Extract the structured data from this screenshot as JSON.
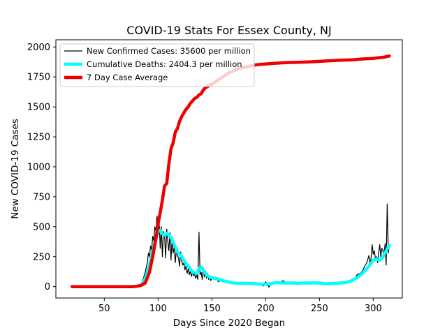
{
  "chart_data": {
    "type": "line",
    "title": "COVID-19 Stats For Essex County, NJ",
    "xlabel": "Days Since 2020 Began",
    "ylabel": "New COVID-19 Cases",
    "xlim": [
      5,
      327
    ],
    "ylim": [
      -95,
      2060
    ],
    "xticks": [
      50,
      100,
      150,
      200,
      250,
      300
    ],
    "yticks": [
      0,
      250,
      500,
      750,
      1000,
      1250,
      1500,
      1750,
      2000
    ],
    "grid": false,
    "legend_position": "top-left",
    "series": [
      {
        "name": "New Confirmed Cases: 35600 per million",
        "color": "#000000",
        "linewidth": 1.2,
        "points": [
          [
            20,
            0
          ],
          [
            30,
            0
          ],
          [
            40,
            0
          ],
          [
            50,
            0
          ],
          [
            60,
            0
          ],
          [
            70,
            0
          ],
          [
            75,
            0
          ],
          [
            80,
            2
          ],
          [
            82,
            5
          ],
          [
            84,
            15
          ],
          [
            86,
            60
          ],
          [
            88,
            120
          ],
          [
            90,
            200
          ],
          [
            91,
            280
          ],
          [
            92,
            250
          ],
          [
            93,
            340
          ],
          [
            94,
            300
          ],
          [
            95,
            420
          ],
          [
            96,
            380
          ],
          [
            97,
            500
          ],
          [
            98,
            460
          ],
          [
            99,
            590
          ],
          [
            100,
            420
          ],
          [
            101,
            540
          ],
          [
            102,
            320
          ],
          [
            103,
            500
          ],
          [
            104,
            250
          ],
          [
            105,
            460
          ],
          [
            106,
            430
          ],
          [
            107,
            240
          ],
          [
            108,
            480
          ],
          [
            109,
            380
          ],
          [
            110,
            300
          ],
          [
            111,
            450
          ],
          [
            112,
            220
          ],
          [
            113,
            400
          ],
          [
            114,
            280
          ],
          [
            115,
            330
          ],
          [
            116,
            200
          ],
          [
            117,
            310
          ],
          [
            118,
            260
          ],
          [
            119,
            240
          ],
          [
            120,
            170
          ],
          [
            121,
            290
          ],
          [
            122,
            210
          ],
          [
            123,
            180
          ],
          [
            124,
            200
          ],
          [
            125,
            140
          ],
          [
            126,
            175
          ],
          [
            127,
            110
          ],
          [
            128,
            150
          ],
          [
            129,
            100
          ],
          [
            130,
            130
          ],
          [
            131,
            85
          ],
          [
            132,
            120
          ],
          [
            133,
            90
          ],
          [
            134,
            105
          ],
          [
            135,
            70
          ],
          [
            136,
            95
          ],
          [
            137,
            60
          ],
          [
            138,
            455
          ],
          [
            139,
            100
          ],
          [
            140,
            120
          ],
          [
            141,
            60
          ],
          [
            142,
            160
          ],
          [
            143,
            80
          ],
          [
            144,
            130
          ],
          [
            145,
            70
          ],
          [
            146,
            110
          ],
          [
            147,
            60
          ],
          [
            148,
            90
          ],
          [
            149,
            50
          ],
          [
            150,
            75
          ],
          [
            152,
            60
          ],
          [
            154,
            80
          ],
          [
            156,
            40
          ],
          [
            158,
            55
          ],
          [
            160,
            40
          ],
          [
            162,
            50
          ],
          [
            165,
            30
          ],
          [
            168,
            40
          ],
          [
            170,
            25
          ],
          [
            172,
            35
          ],
          [
            175,
            20
          ],
          [
            178,
            30
          ],
          [
            180,
            25
          ],
          [
            185,
            20
          ],
          [
            190,
            30
          ],
          [
            195,
            15
          ],
          [
            198,
            5
          ],
          [
            200,
            40
          ],
          [
            203,
            -5
          ],
          [
            205,
            25
          ],
          [
            208,
            40
          ],
          [
            210,
            30
          ],
          [
            213,
            25
          ],
          [
            216,
            50
          ],
          [
            220,
            30
          ],
          [
            225,
            25
          ],
          [
            230,
            35
          ],
          [
            235,
            30
          ],
          [
            240,
            35
          ],
          [
            245,
            30
          ],
          [
            250,
            25
          ],
          [
            255,
            30
          ],
          [
            260,
            25
          ],
          [
            265,
            35
          ],
          [
            270,
            30
          ],
          [
            275,
            45
          ],
          [
            278,
            40
          ],
          [
            280,
            60
          ],
          [
            283,
            70
          ],
          [
            285,
            100
          ],
          [
            288,
            110
          ],
          [
            290,
            130
          ],
          [
            292,
            170
          ],
          [
            294,
            200
          ],
          [
            296,
            260
          ],
          [
            297,
            180
          ],
          [
            298,
            240
          ],
          [
            299,
            350
          ],
          [
            300,
            270
          ],
          [
            301,
            300
          ],
          [
            302,
            230
          ],
          [
            303,
            250
          ],
          [
            304,
            200
          ],
          [
            305,
            280
          ],
          [
            306,
            350
          ],
          [
            307,
            250
          ],
          [
            308,
            320
          ],
          [
            309,
            300
          ],
          [
            310,
            270
          ],
          [
            311,
            360
          ],
          [
            312,
            180
          ],
          [
            313,
            690
          ],
          [
            314,
            280
          ],
          [
            315,
            350
          ]
        ]
      },
      {
        "name": "Cumulative Deaths: 2404.3 per million",
        "color": "#00ffff",
        "linewidth": 4.5,
        "points": [
          [
            84,
            10
          ],
          [
            86,
            30
          ],
          [
            88,
            70
          ],
          [
            90,
            120
          ],
          [
            92,
            180
          ],
          [
            94,
            260
          ],
          [
            96,
            330
          ],
          [
            98,
            400
          ],
          [
            100,
            460
          ],
          [
            102,
            470
          ],
          [
            104,
            440
          ],
          [
            106,
            430
          ],
          [
            108,
            445
          ],
          [
            110,
            430
          ],
          [
            112,
            410
          ],
          [
            114,
            370
          ],
          [
            116,
            330
          ],
          [
            118,
            290
          ],
          [
            120,
            270
          ],
          [
            122,
            250
          ],
          [
            124,
            220
          ],
          [
            126,
            190
          ],
          [
            128,
            170
          ],
          [
            130,
            150
          ],
          [
            132,
            120
          ],
          [
            134,
            115
          ],
          [
            136,
            110
          ],
          [
            138,
            150
          ],
          [
            140,
            160
          ],
          [
            142,
            140
          ],
          [
            144,
            110
          ],
          [
            146,
            90
          ],
          [
            148,
            80
          ],
          [
            150,
            75
          ],
          [
            155,
            65
          ],
          [
            160,
            50
          ],
          [
            165,
            40
          ],
          [
            170,
            30
          ],
          [
            175,
            28
          ],
          [
            180,
            28
          ],
          [
            185,
            27
          ],
          [
            190,
            25
          ],
          [
            195,
            20
          ],
          [
            200,
            20
          ],
          [
            205,
            25
          ],
          [
            210,
            35
          ],
          [
            215,
            30
          ],
          [
            220,
            30
          ],
          [
            225,
            30
          ],
          [
            230,
            28
          ],
          [
            235,
            30
          ],
          [
            240,
            30
          ],
          [
            245,
            32
          ],
          [
            250,
            30
          ],
          [
            255,
            25
          ],
          [
            260,
            25
          ],
          [
            265,
            28
          ],
          [
            270,
            30
          ],
          [
            275,
            35
          ],
          [
            280,
            50
          ],
          [
            285,
            75
          ],
          [
            290,
            110
          ],
          [
            295,
            160
          ],
          [
            300,
            220
          ],
          [
            303,
            230
          ],
          [
            306,
            220
          ],
          [
            309,
            250
          ],
          [
            312,
            300
          ],
          [
            315,
            345
          ]
        ]
      },
      {
        "name": "7 Day Case Average",
        "color": "#ee0000",
        "linewidth": 4.5,
        "points": [
          [
            20,
            0
          ],
          [
            40,
            0
          ],
          [
            60,
            0
          ],
          [
            75,
            0
          ],
          [
            80,
            3
          ],
          [
            84,
            10
          ],
          [
            88,
            30
          ],
          [
            92,
            120
          ],
          [
            95,
            250
          ],
          [
            98,
            400
          ],
          [
            100,
            520
          ],
          [
            102,
            620
          ],
          [
            104,
            720
          ],
          [
            106,
            840
          ],
          [
            108,
            860
          ],
          [
            110,
            1020
          ],
          [
            112,
            1150
          ],
          [
            114,
            1200
          ],
          [
            116,
            1290
          ],
          [
            118,
            1320
          ],
          [
            120,
            1380
          ],
          [
            122,
            1420
          ],
          [
            124,
            1450
          ],
          [
            126,
            1480
          ],
          [
            128,
            1500
          ],
          [
            130,
            1530
          ],
          [
            132,
            1550
          ],
          [
            134,
            1570
          ],
          [
            136,
            1580
          ],
          [
            138,
            1600
          ],
          [
            140,
            1610
          ],
          [
            142,
            1640
          ],
          [
            144,
            1660
          ],
          [
            146,
            1670
          ],
          [
            148,
            1680
          ],
          [
            150,
            1690
          ],
          [
            155,
            1720
          ],
          [
            160,
            1750
          ],
          [
            165,
            1780
          ],
          [
            170,
            1800
          ],
          [
            175,
            1820
          ],
          [
            180,
            1830
          ],
          [
            185,
            1840
          ],
          [
            190,
            1850
          ],
          [
            195,
            1855
          ],
          [
            200,
            1858
          ],
          [
            210,
            1865
          ],
          [
            220,
            1870
          ],
          [
            230,
            1872
          ],
          [
            240,
            1875
          ],
          [
            250,
            1880
          ],
          [
            260,
            1885
          ],
          [
            270,
            1890
          ],
          [
            280,
            1892
          ],
          [
            290,
            1900
          ],
          [
            300,
            1905
          ],
          [
            310,
            1915
          ],
          [
            315,
            1925
          ]
        ]
      }
    ]
  }
}
